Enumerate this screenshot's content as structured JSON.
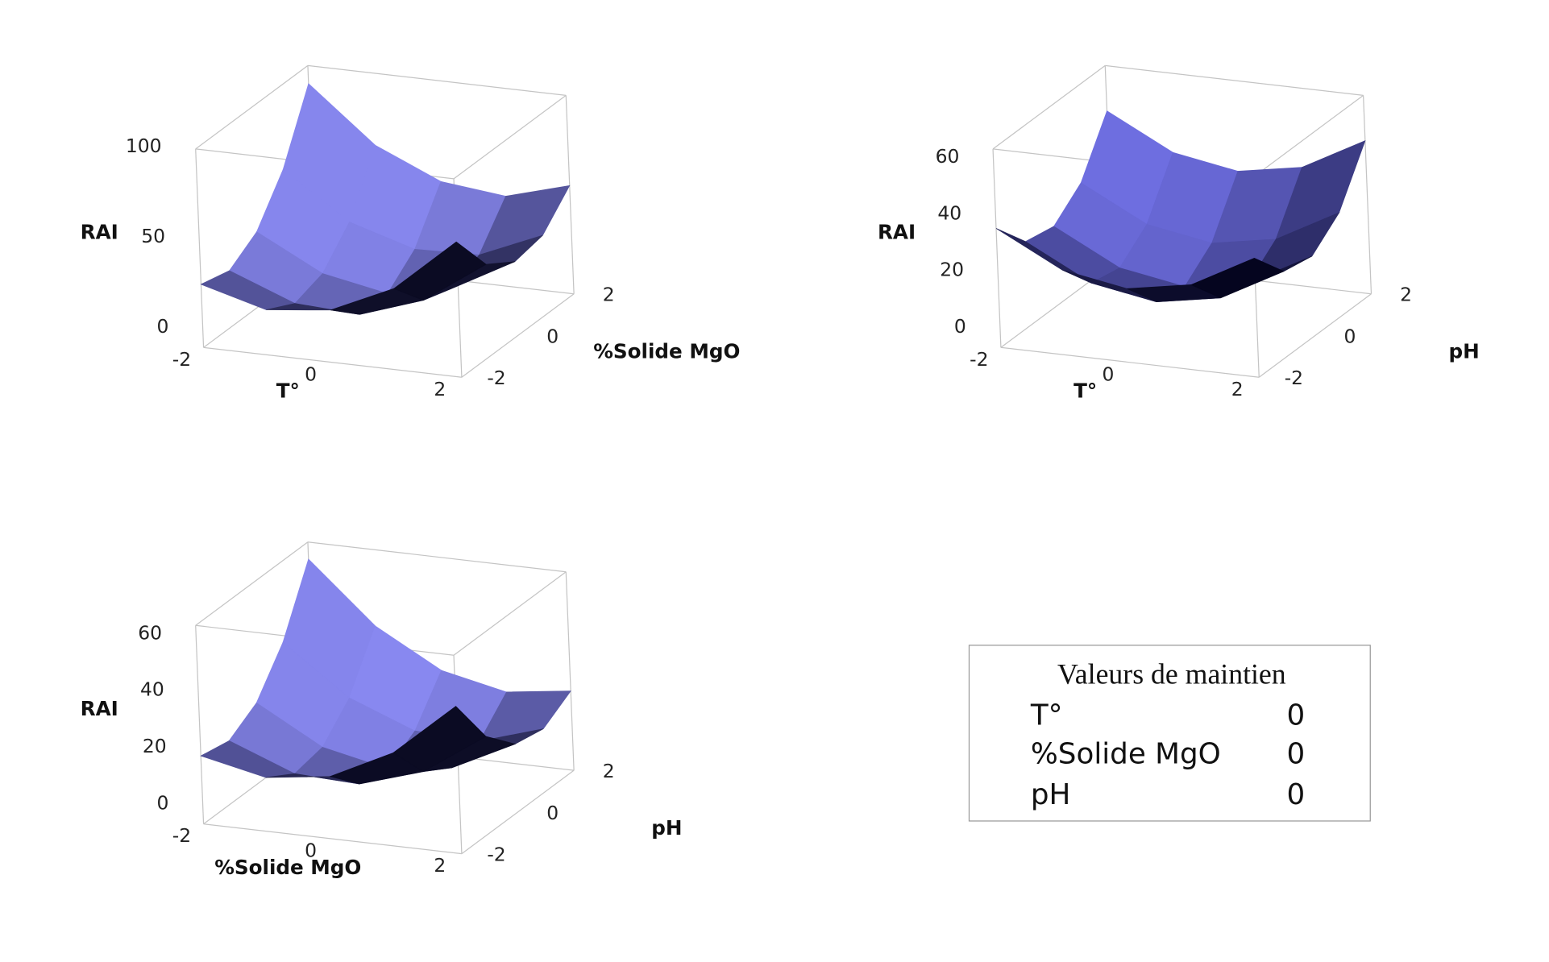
{
  "chart_data": [
    {
      "type": "surface",
      "xlabel": "T°",
      "ylabel": "%Solide MgO",
      "zlabel": "RAI",
      "x": [
        -2,
        -1,
        0,
        1,
        2
      ],
      "y": [
        -2,
        -1,
        0,
        1,
        2
      ],
      "z": [
        [
          35,
          31,
          41,
          64,
          100
        ],
        [
          25,
          17,
          22,
          39,
          70
        ],
        [
          29,
          15,
          15,
          28,
          54
        ],
        [
          45,
          27,
          22,
          29,
          50
        ],
        [
          75,
          51,
          41,
          44,
          60
        ]
      ],
      "xlim": [
        -2,
        2
      ],
      "ylim": [
        -2,
        2
      ],
      "zlim": [
        0,
        110
      ],
      "xticks": [
        -2,
        0,
        2
      ],
      "yticks": [
        -2,
        0,
        2
      ],
      "zticks": [
        0,
        50,
        100
      ],
      "color": "#4848e8"
    },
    {
      "type": "surface",
      "xlabel": "T°",
      "ylabel": "pH",
      "zlabel": "RAI",
      "x": [
        -2,
        -1,
        0,
        1,
        2
      ],
      "y": [
        -2,
        -1,
        0,
        1,
        2
      ],
      "z": [
        [
          42,
          30,
          28,
          36,
          54
        ],
        [
          30,
          18,
          16,
          24,
          42
        ],
        [
          26,
          14,
          12,
          20,
          38
        ],
        [
          30,
          18,
          16,
          24,
          42
        ],
        [
          42,
          30,
          28,
          36,
          54
        ]
      ],
      "xlim": [
        -2,
        2
      ],
      "ylim": [
        -2,
        2
      ],
      "zlim": [
        0,
        70
      ],
      "xticks": [
        -2,
        0,
        2
      ],
      "yticks": [
        -2,
        0,
        2
      ],
      "zticks": [
        0,
        20,
        40,
        60
      ],
      "color": "#2020d0"
    },
    {
      "type": "surface",
      "xlabel": "%Solide MgO",
      "ylabel": "pH",
      "zlabel": "RAI",
      "x": [
        -2,
        -1,
        0,
        1,
        2
      ],
      "y": [
        -2,
        -1,
        0,
        1,
        2
      ],
      "z": [
        [
          24,
          22,
          28,
          42,
          64
        ],
        [
          19,
          13,
          15,
          25,
          43
        ],
        [
          22,
          12,
          10,
          16,
          30
        ],
        [
          33,
          19,
          13,
          15,
          25
        ],
        [
          52,
          34,
          24,
          22,
          28
        ]
      ],
      "xlim": [
        -2,
        2
      ],
      "ylim": [
        -2,
        2
      ],
      "zlim": [
        0,
        70
      ],
      "xticks": [
        -2,
        0,
        2
      ],
      "yticks": [
        -2,
        0,
        2
      ],
      "zticks": [
        0,
        20,
        40,
        60
      ],
      "color": "#4848e8"
    }
  ],
  "hold_values": {
    "title": "Valeurs de maintien",
    "rows": [
      {
        "name": "T°",
        "value": 0
      },
      {
        "name": "%Solide MgO",
        "value": 0
      },
      {
        "name": "pH",
        "value": 0
      }
    ]
  }
}
